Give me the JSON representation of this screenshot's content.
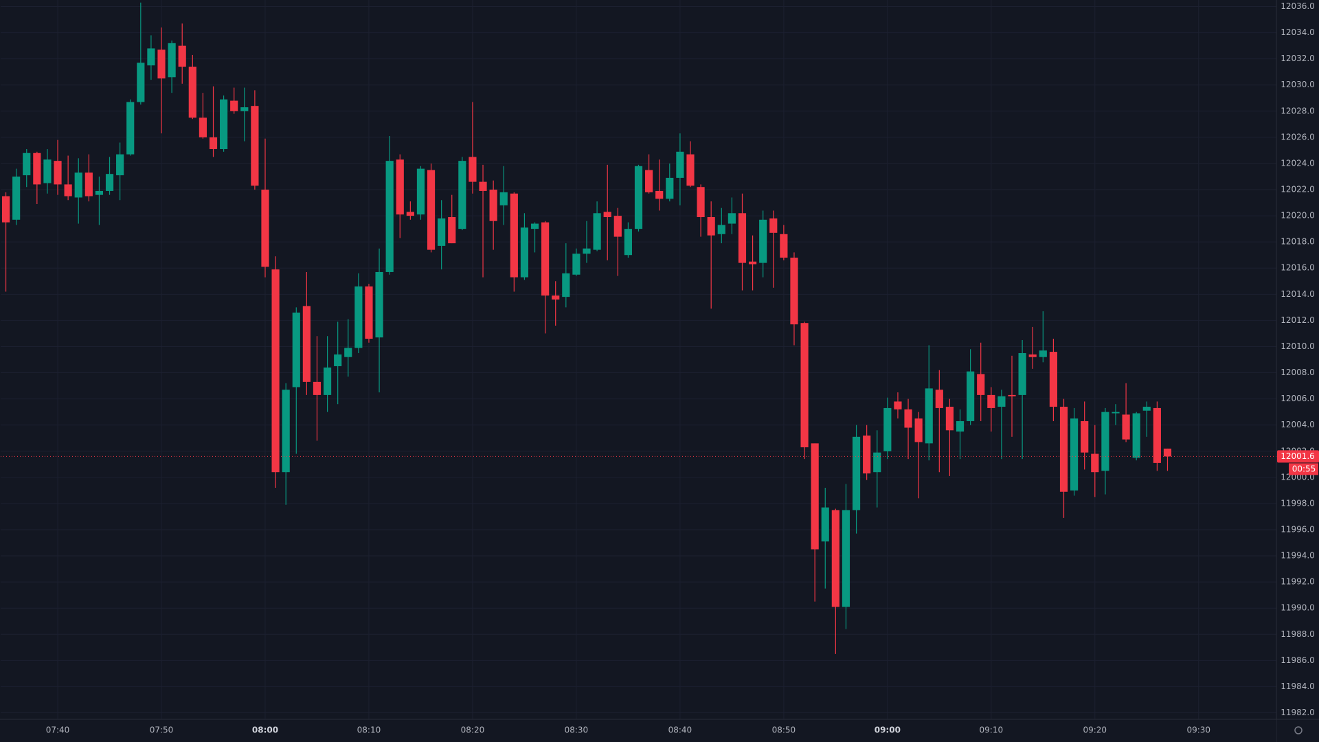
{
  "chart_data": {
    "type": "candlestick",
    "categories": [
      null,
      null,
      null,
      null,
      null,
      "07:40",
      null,
      null,
      null,
      null,
      null,
      null,
      null,
      null,
      null,
      "07:50",
      null,
      null,
      null,
      null,
      null,
      null,
      null,
      null,
      null,
      "08:00",
      null,
      null,
      null,
      null,
      null,
      null,
      null,
      null,
      null,
      "08:10",
      null,
      null,
      null,
      null,
      null,
      null,
      null,
      null,
      null,
      "08:20",
      null,
      null,
      null,
      null,
      null,
      null,
      null,
      null,
      null,
      "08:30",
      null,
      null,
      null,
      null,
      null,
      null,
      null,
      null,
      null,
      "08:40",
      null,
      null,
      null,
      null,
      null,
      null,
      null,
      null,
      null,
      "08:50",
      null,
      null,
      null,
      null,
      null,
      null,
      null,
      null,
      null,
      "09:00",
      null,
      null,
      null,
      null,
      null,
      null,
      null,
      null,
      null,
      "09:10",
      null,
      null,
      null,
      null,
      null,
      null,
      null,
      null,
      null,
      "09:20",
      null,
      null,
      null,
      null,
      null,
      null,
      null,
      null,
      null,
      "09:30",
      null,
      null,
      null,
      null,
      null,
      null,
      null
    ],
    "open": [
      12021.5,
      12019.7,
      12023.1,
      12024.8,
      12022.5,
      12024.2,
      12022.4,
      12021.4,
      12023.3,
      12021.6,
      12021.9,
      12023.1,
      12024.7,
      12028.7,
      12031.5,
      12032.7,
      12030.6,
      12033.0,
      12031.4,
      12027.5,
      12026.0,
      12025.1,
      12028.8,
      12028.0,
      12028.4,
      12022.0,
      12015.9,
      12000.4,
      12006.9,
      12013.1,
      12007.3,
      12006.3,
      12008.5,
      12009.2,
      12009.9,
      12014.6,
      12010.7,
      12015.7,
      12024.3,
      12020.3,
      12020.1,
      12023.5,
      12017.7,
      12019.9,
      12019.0,
      12024.5,
      12022.6,
      12022.0,
      12020.8,
      12021.7,
      12015.3,
      12019.0,
      12019.5,
      12013.9,
      12013.8,
      12015.5,
      12017.1,
      12017.4,
      12020.3,
      12020.0,
      12017.0,
      12019.0,
      12023.5,
      12021.9,
      12021.3,
      12022.9,
      12024.7,
      12022.2,
      12019.9,
      12018.6,
      12019.4,
      12020.2,
      12016.5,
      12016.4,
      12019.8,
      12018.6,
      12016.8,
      12011.8,
      12002.6,
      11995.1,
      11997.5,
      11990.1,
      11997.5,
      12003.2,
      12000.4,
      12002.0,
      12005.8,
      12005.2,
      12004.5,
      12002.6,
      12006.7,
      12005.4,
      12003.5,
      12004.3,
      12007.9,
      12006.3,
      12005.4,
      12006.3,
      12006.3,
      12009.4,
      12009.2,
      12009.6,
      12005.4,
      11999.0,
      12004.3,
      12001.8,
      12000.5,
      12004.9,
      12004.8,
      12001.5,
      12005.1,
      12005.3,
      12002.2,
      null,
      null,
      null,
      null,
      null,
      null,
      null,
      null,
      null,
      null
    ],
    "high": [
      12021.8,
      12023.6,
      12025.1,
      12024.9,
      12025.1,
      12025.8,
      12024.6,
      12024.4,
      12024.7,
      12023.0,
      12024.5,
      12025.6,
      12028.9,
      12036.3,
      12033.8,
      12034.4,
      12033.4,
      12034.7,
      12032.3,
      12029.4,
      12029.9,
      12029.2,
      12029.8,
      12029.8,
      12029.6,
      12025.9,
      12016.9,
      12007.2,
      12013.0,
      12015.7,
      12010.8,
      12010.8,
      12011.9,
      12012.1,
      12015.6,
      12014.8,
      12017.5,
      12026.1,
      12024.7,
      12021.1,
      12023.8,
      12024.0,
      12021.2,
      12021.6,
      12024.5,
      12028.7,
      12023.9,
      12022.7,
      12023.8,
      12021.8,
      12020.2,
      12019.5,
      12019.6,
      12015.0,
      12017.9,
      12017.5,
      12019.6,
      12021.1,
      12023.9,
      12020.6,
      12019.5,
      12023.9,
      12024.7,
      12024.3,
      12024.0,
      12026.3,
      12025.7,
      12022.4,
      12021.1,
      12020.6,
      12021.4,
      12021.7,
      12018.5,
      12020.4,
      12020.4,
      12019.3,
      12017.2,
      12011.9,
      12002.6,
      11999.2,
      11997.6,
      11999.5,
      12004.0,
      12004.0,
      12003.6,
      12006.1,
      12006.5,
      12006.0,
      12005.0,
      12010.1,
      12008.2,
      12006.0,
      12005.2,
      12009.8,
      12010.3,
      12006.9,
      12006.7,
      12009.3,
      12010.5,
      12011.5,
      12012.7,
      12010.6,
      12006.0,
      12005.3,
      12005.8,
      12004.0,
      12005.3,
      12005.6,
      12007.2,
      12005.0,
      12005.8,
      12005.8,
      12002.2,
      null,
      null,
      null,
      null,
      null,
      null,
      null,
      null,
      null,
      null
    ],
    "low": [
      12014.2,
      12019.3,
      12022.2,
      12020.9,
      12021.7,
      12021.6,
      12021.2,
      12019.4,
      12021.1,
      12019.3,
      12021.6,
      12021.2,
      12024.6,
      12028.5,
      12030.4,
      12026.3,
      12029.4,
      12030.1,
      12027.4,
      12025.9,
      12024.5,
      12024.9,
      12027.8,
      12025.7,
      12022.0,
      12015.3,
      11999.2,
      11997.9,
      12001.8,
      12006.3,
      12002.8,
      12005.0,
      12005.6,
      12007.7,
      12009.5,
      12010.3,
      12006.5,
      12015.5,
      12018.3,
      12019.7,
      12019.7,
      12017.2,
      12015.9,
      12017.9,
      12018.9,
      12021.7,
      12015.3,
      12017.4,
      12019.3,
      12014.2,
      12015.1,
      12017.2,
      12011.0,
      12011.6,
      12013.0,
      12015.4,
      12016.4,
      12017.3,
      12016.6,
      12015.4,
      12016.8,
      12018.8,
      12021.7,
      12020.4,
      12021.1,
      12020.8,
      12022.2,
      12018.4,
      12012.9,
      12017.9,
      12018.6,
      12014.3,
      12014.3,
      12015.3,
      12014.5,
      12016.6,
      12010.1,
      12001.4,
      11990.5,
      11991.5,
      11986.5,
      11988.4,
      11995.7,
      11999.8,
      11997.7,
      12001.4,
      12004.5,
      12001.4,
      11998.4,
      12001.3,
      12000.4,
      12000.1,
      12001.4,
      12004.0,
      12004.3,
      12003.5,
      12001.4,
      12003.1,
      12001.4,
      12008.3,
      12008.8,
      12004.3,
      11996.9,
      11998.6,
      12000.6,
      11998.5,
      11998.7,
      12004.0,
      12002.7,
      12001.3,
      12003.1,
      12000.5,
      12000.5,
      null,
      null,
      null,
      null,
      null,
      null,
      null,
      null,
      null,
      null
    ],
    "close": [
      12019.5,
      12023.0,
      12024.8,
      12022.4,
      12024.3,
      12022.4,
      12021.5,
      12023.3,
      12021.5,
      12021.9,
      12023.2,
      12024.7,
      12028.7,
      12031.7,
      12032.8,
      12030.5,
      12033.2,
      12031.4,
      12027.5,
      12026.0,
      12025.1,
      12028.9,
      12028.0,
      12028.3,
      12022.3,
      12016.1,
      12000.4,
      12006.7,
      12012.6,
      12007.3,
      12006.3,
      12008.4,
      12009.4,
      12009.9,
      12014.6,
      12010.6,
      12015.7,
      12024.2,
      12020.1,
      12020.0,
      12023.6,
      12017.4,
      12019.8,
      12017.9,
      12024.2,
      12022.6,
      12021.9,
      12019.6,
      12021.8,
      12015.3,
      12019.1,
      12019.4,
      12013.9,
      12013.6,
      12015.6,
      12017.1,
      12017.5,
      12020.2,
      12019.9,
      12018.4,
      12019.0,
      12023.8,
      12021.8,
      12021.3,
      12022.9,
      12024.9,
      12022.3,
      12019.9,
      12018.5,
      12019.3,
      12020.2,
      12016.4,
      12016.3,
      12019.7,
      12018.7,
      12016.8,
      12011.7,
      12002.3,
      11994.5,
      11997.7,
      11990.1,
      11997.5,
      12003.1,
      12000.3,
      12001.9,
      12005.3,
      12005.2,
      12003.8,
      12002.7,
      12006.8,
      12005.3,
      12003.6,
      12004.3,
      12008.1,
      12006.3,
      12005.3,
      12006.2,
      12006.2,
      12009.5,
      12009.2,
      12009.7,
      12005.4,
      11998.9,
      12004.5,
      12001.9,
      12000.4,
      12005.0,
      12005.0,
      12002.9,
      12004.9,
      12005.4,
      12001.1,
      12001.6,
      null,
      null,
      null,
      null,
      null,
      null,
      null,
      null,
      null,
      null
    ],
    "up_color": "#089981",
    "down_color": "#f23645",
    "ylim": [
      11981.5,
      12036.5
    ],
    "yticks": [
      {
        "value": 11982,
        "label": "11982.0"
      },
      {
        "value": 11984,
        "label": "11984.0"
      },
      {
        "value": 11986,
        "label": "11986.0"
      },
      {
        "value": 11988,
        "label": "11988.0"
      },
      {
        "value": 11990,
        "label": "11990.0"
      },
      {
        "value": 11992,
        "label": "11992.0"
      },
      {
        "value": 11994,
        "label": "11994.0"
      },
      {
        "value": 11996,
        "label": "11996.0"
      },
      {
        "value": 11998,
        "label": "11998.0"
      },
      {
        "value": 12000,
        "label": "12000.0"
      },
      {
        "value": 12002,
        "label": "12002.0"
      },
      {
        "value": 12004,
        "label": "12004.0"
      },
      {
        "value": 12006,
        "label": "12006.0"
      },
      {
        "value": 12008,
        "label": "12008.0"
      },
      {
        "value": 12010,
        "label": "12010.0"
      },
      {
        "value": 12012,
        "label": "12012.0"
      },
      {
        "value": 12014,
        "label": "12014.0"
      },
      {
        "value": 12016,
        "label": "12016.0"
      },
      {
        "value": 12018,
        "label": "12018.0"
      },
      {
        "value": 12020,
        "label": "12020.0"
      },
      {
        "value": 12022,
        "label": "12022.0"
      },
      {
        "value": 12024,
        "label": "12024.0"
      },
      {
        "value": 12026,
        "label": "12026.0"
      },
      {
        "value": 12028,
        "label": "12028.0"
      },
      {
        "value": 12030,
        "label": "12030.0"
      },
      {
        "value": 12032,
        "label": "12032.0"
      },
      {
        "value": 12034,
        "label": "12034.0"
      },
      {
        "value": 12036,
        "label": "12036.0"
      }
    ],
    "grid": true,
    "countdown": "00:55"
  }
}
